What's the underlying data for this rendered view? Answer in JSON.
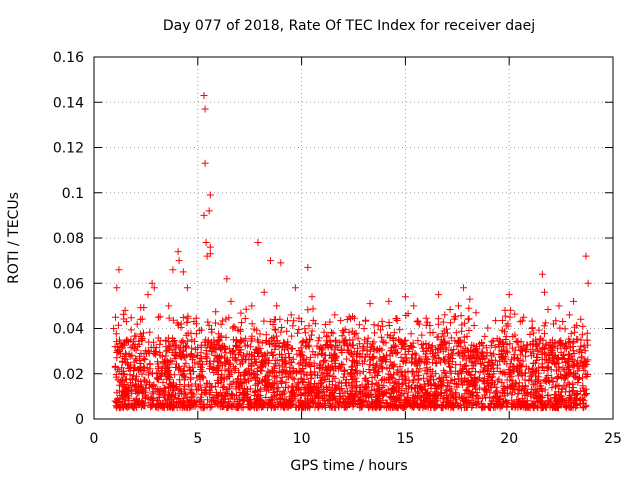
{
  "chart_data": {
    "type": "scatter",
    "title": "Day 077 of 2018, Rate Of TEC Index for receiver daej",
    "xlabel": "GPS time / hours",
    "ylabel": "ROTI / TECUs",
    "xlim": [
      0,
      25
    ],
    "ylim": [
      0,
      0.16
    ],
    "xticks": [
      0,
      5,
      10,
      15,
      20,
      25
    ],
    "xtick_labels": [
      "0",
      "5",
      "10",
      "15",
      "20",
      "25"
    ],
    "yticks": [
      0,
      0.02,
      0.04,
      0.06,
      0.08,
      0.1,
      0.12,
      0.14,
      0.16
    ],
    "ytick_labels": [
      "0",
      "0.02",
      "0.04",
      "0.06",
      "0.08",
      "0.1",
      "0.12",
      "0.14",
      "0.16"
    ],
    "grid": true,
    "marker": "+",
    "series": [
      {
        "name": "ROTI",
        "color": "#ff0000",
        "x_range": [
          1.0,
          23.8
        ],
        "typical_range": [
          0.005,
          0.035
        ],
        "points": [
          [
            5.3,
            0.143
          ],
          [
            5.35,
            0.137
          ],
          [
            5.35,
            0.113
          ],
          [
            5.6,
            0.099
          ],
          [
            5.55,
            0.092
          ],
          [
            5.3,
            0.09
          ],
          [
            7.9,
            0.078
          ],
          [
            5.4,
            0.078
          ],
          [
            5.6,
            0.076
          ],
          [
            4.05,
            0.074
          ],
          [
            5.6,
            0.073
          ],
          [
            5.45,
            0.072
          ],
          [
            4.1,
            0.07
          ],
          [
            8.5,
            0.07
          ],
          [
            9.0,
            0.069
          ],
          [
            3.8,
            0.066
          ],
          [
            1.2,
            0.066
          ],
          [
            10.3,
            0.067
          ],
          [
            4.3,
            0.065
          ],
          [
            23.7,
            0.072
          ],
          [
            21.6,
            0.064
          ],
          [
            2.8,
            0.06
          ],
          [
            2.9,
            0.058
          ],
          [
            6.4,
            0.062
          ],
          [
            1.1,
            0.058
          ],
          [
            4.5,
            0.058
          ],
          [
            17.8,
            0.058
          ],
          [
            9.7,
            0.058
          ],
          [
            8.2,
            0.056
          ],
          [
            21.7,
            0.056
          ],
          [
            20.0,
            0.055
          ],
          [
            16.6,
            0.055
          ],
          [
            15.0,
            0.054
          ],
          [
            23.8,
            0.06
          ],
          [
            2.6,
            0.055
          ],
          [
            18.1,
            0.053
          ],
          [
            6.6,
            0.052
          ],
          [
            10.5,
            0.054
          ],
          [
            14.2,
            0.052
          ],
          [
            13.3,
            0.051
          ],
          [
            3.6,
            0.05
          ],
          [
            7.6,
            0.05
          ],
          [
            23.1,
            0.052
          ],
          [
            15.4,
            0.05
          ],
          [
            22.4,
            0.05
          ],
          [
            19.8,
            0.048
          ],
          [
            1.5,
            0.048
          ],
          [
            11.6,
            0.046
          ],
          [
            16.9,
            0.046
          ],
          [
            20.7,
            0.045
          ],
          [
            12.2,
            0.044
          ],
          [
            18.4,
            0.047
          ],
          [
            3.1,
            0.045
          ],
          [
            22.9,
            0.046
          ],
          [
            0.95,
            0.04
          ],
          [
            4.2,
            0.042
          ],
          [
            21.1,
            0.04
          ],
          [
            13.9,
            0.041
          ],
          [
            9.5,
            0.046
          ],
          [
            8.8,
            0.05
          ]
        ]
      }
    ]
  }
}
